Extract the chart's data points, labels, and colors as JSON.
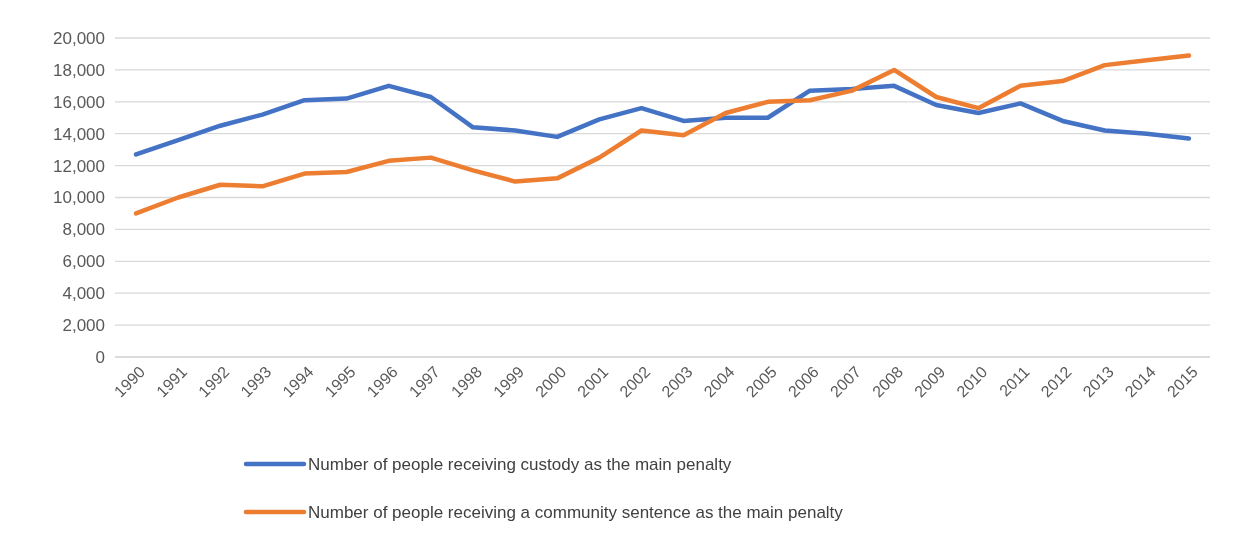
{
  "chart_data": {
    "type": "line",
    "categories": [
      "1990",
      "1991",
      "1992",
      "1993",
      "1994",
      "1995",
      "1996",
      "1997",
      "1998",
      "1999",
      "2000",
      "2001",
      "2002",
      "2003",
      "2004",
      "2005",
      "2006",
      "2007",
      "2008",
      "2009",
      "2010",
      "2011",
      "2012",
      "2013",
      "2014",
      "2015"
    ],
    "series": [
      {
        "name": "Number of people receiving custody as the main penalty",
        "color": "#4472c4",
        "values": [
          12700,
          13600,
          14500,
          15200,
          16100,
          16200,
          17000,
          16300,
          14400,
          14200,
          13800,
          14900,
          15600,
          14800,
          15000,
          15000,
          16700,
          16800,
          17000,
          15800,
          15300,
          15900,
          14800,
          14200,
          14000,
          13700
        ]
      },
      {
        "name": "Number of people receiving a community sentence as the main penalty",
        "color": "#ed7d31",
        "values": [
          9000,
          10000,
          10800,
          10700,
          11500,
          11600,
          12300,
          12500,
          11700,
          11000,
          11200,
          12500,
          14200,
          13900,
          15300,
          16000,
          16100,
          16700,
          18000,
          16300,
          15600,
          17000,
          17300,
          18300,
          18600,
          18900
        ]
      }
    ],
    "ylim": [
      0,
      20000
    ],
    "yticks": [
      {
        "value": 0,
        "label": "0"
      },
      {
        "value": 2000,
        "label": "2,000"
      },
      {
        "value": 4000,
        "label": "4,000"
      },
      {
        "value": 6000,
        "label": "6,000"
      },
      {
        "value": 8000,
        "label": "8,000"
      },
      {
        "value": 10000,
        "label": "10,000"
      },
      {
        "value": 12000,
        "label": "12,000"
      },
      {
        "value": 14000,
        "label": "14,000"
      },
      {
        "value": 16000,
        "label": "16,000"
      },
      {
        "value": 18000,
        "label": "18,000"
      },
      {
        "value": 20000,
        "label": "20,000"
      }
    ],
    "grid": "y",
    "legend": "bottom",
    "marker": "none",
    "line_style": "solid"
  }
}
